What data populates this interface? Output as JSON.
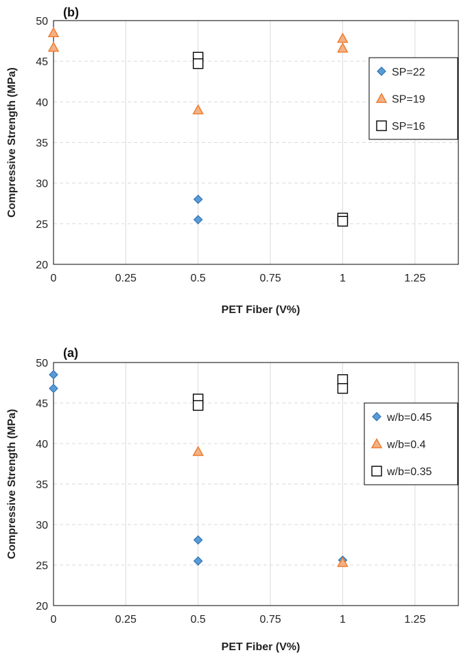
{
  "colors": {
    "diamond_fill": "#5b9bd5",
    "diamond_stroke": "#2e75b6",
    "triangle_fill": "#f4b183",
    "triangle_stroke": "#ed7d31",
    "square_fill": "#ffffff",
    "square_stroke": "#000000",
    "grid": "#d9d9d9"
  },
  "chart_data": [
    {
      "id": "b",
      "type": "scatter",
      "panel_label": "(b)",
      "xlabel": "PET Fiber (V%)",
      "ylabel": "Compressive Strength (MPa)",
      "xlim": [
        0,
        1.4
      ],
      "ylim": [
        20,
        50
      ],
      "xticks": [
        0,
        0.25,
        0.5,
        0.75,
        1,
        1.25
      ],
      "xtick_labels": [
        "0",
        "0.25",
        "0.5",
        "0.75",
        "1",
        "1.25"
      ],
      "yticks": [
        20,
        25,
        30,
        35,
        40,
        45,
        50
      ],
      "yticks_labels": [
        "20",
        "25",
        "30",
        "35",
        "40",
        "45",
        "50"
      ],
      "legend_position": "right",
      "series": [
        {
          "name": "SP=22",
          "marker": "diamond",
          "points": [
            [
              0.5,
              28.0
            ],
            [
              0.5,
              25.5
            ],
            [
              1,
              25.6
            ]
          ]
        },
        {
          "name": "SP=19",
          "marker": "triangle",
          "points": [
            [
              0,
              48.5
            ],
            [
              0,
              46.7
            ],
            [
              0.5,
              39.0
            ],
            [
              1,
              47.8
            ],
            [
              1,
              46.6
            ]
          ]
        },
        {
          "name": "SP=16",
          "marker": "square",
          "points": [
            [
              0.5,
              45.5
            ],
            [
              0.5,
              44.7
            ],
            [
              1,
              25.7
            ],
            [
              1,
              25.3
            ]
          ]
        }
      ]
    },
    {
      "id": "a",
      "type": "scatter",
      "panel_label": "(a)",
      "xlabel": "PET Fiber (V%)",
      "ylabel": "Compressive Strength (MPa)",
      "xlim": [
        0,
        1.4
      ],
      "ylim": [
        20,
        50
      ],
      "xticks": [
        0,
        0.25,
        0.5,
        0.75,
        1,
        1.25
      ],
      "xtick_labels": [
        "0",
        "0.25",
        "0.5",
        "0.75",
        "1",
        "1.25"
      ],
      "yticks": [
        20,
        25,
        30,
        35,
        40,
        45,
        50
      ],
      "yticks_labels": [
        "20",
        "25",
        "30",
        "35",
        "40",
        "45",
        "50"
      ],
      "legend_position": "right",
      "series": [
        {
          "name": "w/b=0.45",
          "marker": "diamond",
          "points": [
            [
              0,
              48.5
            ],
            [
              0,
              46.8
            ],
            [
              0.5,
              28.1
            ],
            [
              0.5,
              25.5
            ],
            [
              1,
              25.6
            ]
          ]
        },
        {
          "name": "w/b=0.4",
          "marker": "triangle",
          "points": [
            [
              0.5,
              39.0
            ],
            [
              1,
              25.3
            ]
          ]
        },
        {
          "name": "w/b=0.35",
          "marker": "square",
          "points": [
            [
              0.5,
              45.5
            ],
            [
              0.5,
              44.7
            ],
            [
              1,
              47.9
            ],
            [
              1,
              46.8
            ]
          ]
        }
      ]
    }
  ]
}
